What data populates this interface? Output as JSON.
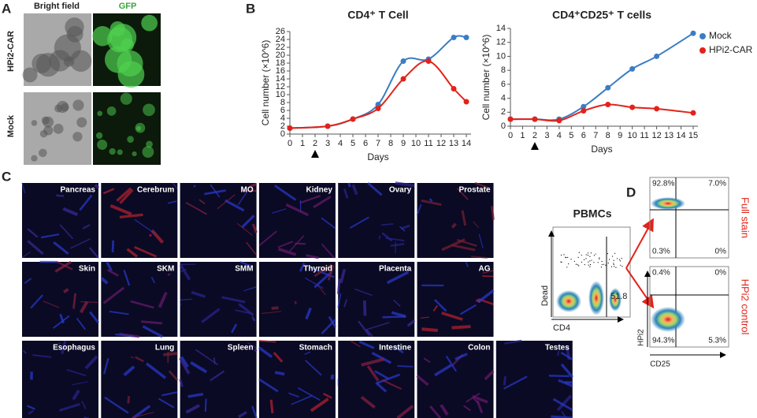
{
  "panel_labels": [
    "A",
    "B",
    "C",
    "D"
  ],
  "panel_a": {
    "columns": [
      "Bright field",
      "GFP"
    ],
    "rows": [
      "HPi2-CAR",
      "Mock"
    ]
  },
  "chart_data": [
    {
      "type": "line",
      "title": "CD4⁺ T Cell",
      "x_label": "Days",
      "y_label": "Cell number (×10^6)",
      "x": [
        0,
        3,
        5,
        7,
        9,
        11,
        13,
        14
      ],
      "series": [
        {
          "color": "#3b7dc4",
          "values": [
            1.5,
            2,
            3.8,
            7.5,
            18.5,
            19,
            24.5,
            24.5
          ]
        },
        {
          "color": "#e2231a",
          "values": [
            1.5,
            2,
            3.8,
            6.5,
            14,
            18.5,
            11.5,
            8.2
          ]
        }
      ],
      "xlim": [
        0,
        14
      ],
      "xticks": [
        0,
        1,
        2,
        3,
        4,
        5,
        6,
        7,
        8,
        9,
        10,
        11,
        12,
        13,
        14
      ],
      "ylim": [
        0,
        26
      ],
      "yticks": [
        0,
        2,
        4,
        6,
        8,
        10,
        12,
        14,
        16,
        18,
        20,
        22,
        24,
        26
      ],
      "markers": true,
      "smooth": true,
      "grid": false
    },
    {
      "type": "line",
      "title": "CD4⁺CD25⁺ T cells",
      "x_label": "Days",
      "y_label": "Cell number (×10^6)",
      "x": [
        0,
        2,
        4,
        6,
        8,
        10,
        12,
        15
      ],
      "series": [
        {
          "name": "Mock",
          "color": "#3b7dc4",
          "values": [
            1,
            1,
            1,
            2.8,
            5.5,
            8.2,
            10,
            13.3
          ]
        },
        {
          "name": "HPi2-CAR",
          "color": "#e2231a",
          "values": [
            1,
            1,
            0.8,
            2.2,
            3.1,
            2.7,
            2.5,
            1.9
          ]
        }
      ],
      "xlim": [
        0,
        15
      ],
      "xticks": [
        0,
        1,
        2,
        3,
        4,
        5,
        6,
        7,
        8,
        9,
        10,
        11,
        12,
        13,
        14,
        15
      ],
      "ylim": [
        0,
        14
      ],
      "yticks": [
        0,
        2,
        4,
        6,
        8,
        10,
        12,
        14
      ],
      "markers": true,
      "smooth": true,
      "grid": false,
      "legend": "right"
    }
  ],
  "panel_c": {
    "tissues": [
      [
        "Pancreas",
        "Cerebrum",
        "MO",
        "Kidney",
        "Ovary",
        "Prostate"
      ],
      [
        "Skin",
        "SKM",
        "SMM",
        "Thyroid",
        "Placenta",
        "AG"
      ],
      [
        "Esophagus",
        "Lung",
        "Spleen",
        "Stomach",
        "Intestine",
        "Colon",
        "Testes"
      ]
    ]
  },
  "panel_d": {
    "title": "PBMCs",
    "x_label": "CD4",
    "y_label": "Dead",
    "gate": "51.8",
    "rows": [
      "Full stain",
      "HPi2 control"
    ],
    "quadrants": [
      [
        "92.8%",
        "7.0%",
        "0.3%",
        "0%"
      ],
      [
        "0.4%",
        "0%",
        "94.3%",
        "5.3%"
      ]
    ],
    "quad_x_label": "CD25",
    "quad_y_label": "HPi2"
  }
}
